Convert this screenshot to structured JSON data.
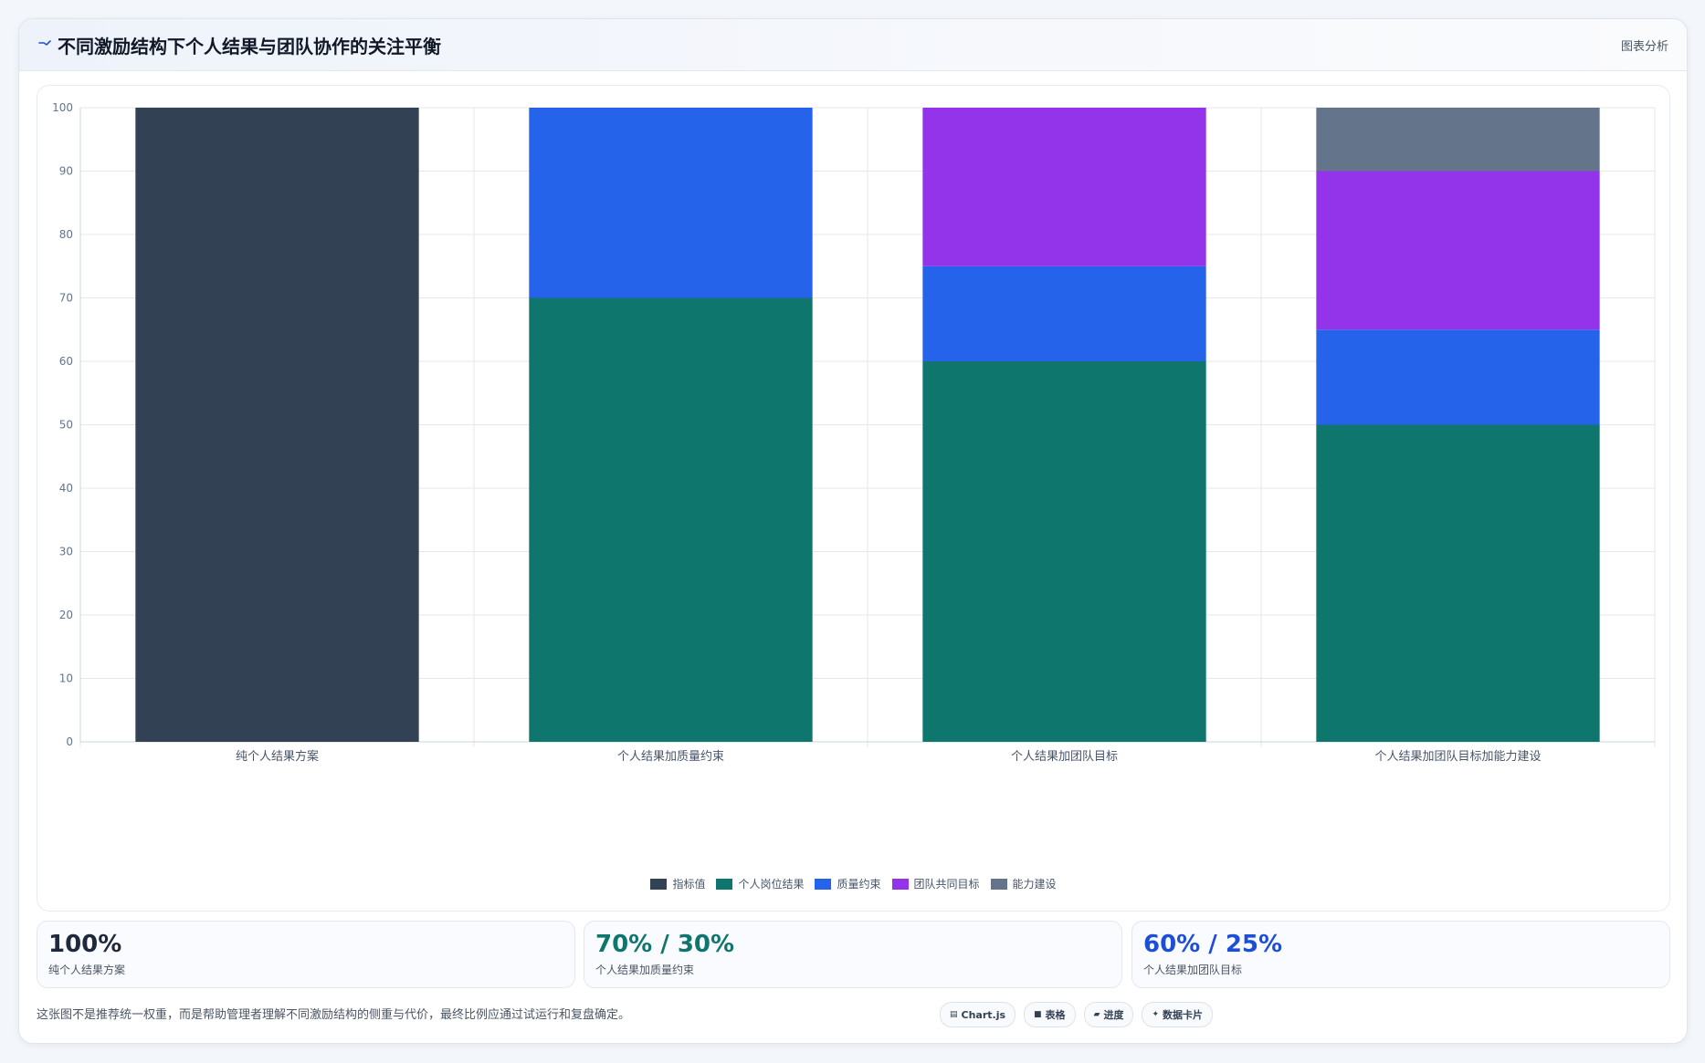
{
  "header": {
    "title": "不同激励结构下个人结果与团队协作的关注平衡",
    "action_label": "图表分析",
    "icon": "trend-line-icon"
  },
  "chart_data": {
    "type": "bar",
    "stacked": true,
    "categories": [
      "纯个人结果方案",
      "个人结果加质量约束",
      "个人结果加团队目标",
      "个人结果加团队目标加能力建设"
    ],
    "series": [
      {
        "name": "指标值",
        "color": "#334155",
        "values": [
          100,
          0,
          0,
          0
        ]
      },
      {
        "name": "个人岗位结果",
        "color": "#0f766e",
        "values": [
          0,
          70,
          60,
          50
        ]
      },
      {
        "name": "质量约束",
        "color": "#2563eb",
        "values": [
          0,
          30,
          15,
          15
        ]
      },
      {
        "name": "团队共同目标",
        "color": "#9333ea",
        "values": [
          0,
          0,
          25,
          25
        ]
      },
      {
        "name": "能力建设",
        "color": "#64748b",
        "values": [
          0,
          0,
          0,
          10
        ]
      }
    ],
    "ylim": [
      0,
      100
    ],
    "yticks": [
      0,
      10,
      20,
      30,
      40,
      50,
      60,
      70,
      80,
      90,
      100
    ],
    "grid": true,
    "legend_position": "bottom",
    "xlabel": "",
    "ylabel": ""
  },
  "stats": [
    {
      "value": "100%",
      "label": "纯个人结果方案",
      "color": "#1e293b"
    },
    {
      "value": "70% / 30%",
      "label": "个人结果加质量约束",
      "color": "#0f766e"
    },
    {
      "value": "60% / 25%",
      "label": "个人结果加团队目标",
      "color": "#1d4ed8"
    }
  ],
  "footnote": "这张图不是推荐统一权重，而是帮助管理者理解不同激励结构的侧重与代价，最终比例应通过试运行和复盘确定。",
  "chips": [
    {
      "label": "Chart.js",
      "icon": "chart-icon",
      "glyph": "▤"
    },
    {
      "label": "表格",
      "icon": "table-icon",
      "glyph": "■"
    },
    {
      "label": "进度",
      "icon": "progress-icon",
      "glyph": "▰"
    },
    {
      "label": "数据卡片",
      "icon": "sparkle-icon",
      "glyph": "✦"
    }
  ]
}
